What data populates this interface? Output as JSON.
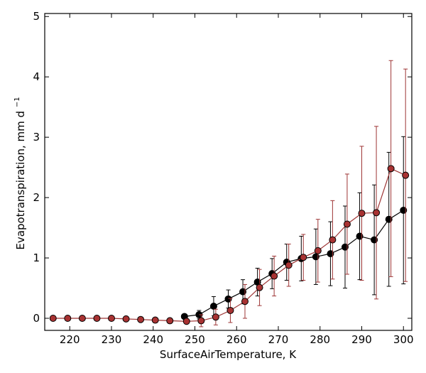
{
  "chart_data": {
    "type": "line",
    "xlabel": "SurfaceAirTemperature,  K",
    "ylabel": "Evapotranspiration,  mm d",
    "ylabel_sup": "−1",
    "xlim": [
      214,
      302
    ],
    "ylim": [
      -0.2,
      5.05
    ],
    "xticks": [
      220,
      230,
      240,
      250,
      260,
      270,
      280,
      290,
      300
    ],
    "yticks": [
      0,
      1,
      2,
      3,
      4,
      5
    ],
    "grid": false,
    "legend": "none",
    "series": [
      {
        "color": "#000000",
        "marker_fill": "#000000",
        "points": [
          {
            "x": 247.5,
            "y": 0.03,
            "err": 0.03
          },
          {
            "x": 251.0,
            "y": 0.06,
            "err": 0.07
          },
          {
            "x": 254.5,
            "y": 0.2,
            "err": 0.16
          },
          {
            "x": 258.0,
            "y": 0.32,
            "err": 0.15
          },
          {
            "x": 261.5,
            "y": 0.44,
            "err": 0.2
          },
          {
            "x": 265.0,
            "y": 0.6,
            "err": 0.23
          },
          {
            "x": 268.5,
            "y": 0.74,
            "err": 0.25
          },
          {
            "x": 272.0,
            "y": 0.93,
            "err": 0.3
          },
          {
            "x": 275.5,
            "y": 0.99,
            "err": 0.37
          },
          {
            "x": 279.0,
            "y": 1.02,
            "err": 0.46
          },
          {
            "x": 282.5,
            "y": 1.07,
            "err": 0.53
          },
          {
            "x": 286.0,
            "y": 1.18,
            "err": 0.68
          },
          {
            "x": 289.5,
            "y": 1.36,
            "err": 0.72
          },
          {
            "x": 293.0,
            "y": 1.3,
            "err": 0.91
          },
          {
            "x": 296.5,
            "y": 1.64,
            "err": 1.11
          },
          {
            "x": 300.0,
            "y": 1.79,
            "err": 1.22
          }
        ]
      },
      {
        "color": "#9e3535",
        "marker_fill": "#a83232",
        "points": [
          {
            "x": 216.0,
            "y": 0.0,
            "err": 0
          },
          {
            "x": 219.5,
            "y": 0.0,
            "err": 0
          },
          {
            "x": 223.0,
            "y": 0.0,
            "err": 0
          },
          {
            "x": 226.5,
            "y": 0.0,
            "err": 0
          },
          {
            "x": 230.0,
            "y": 0.0,
            "err": 0
          },
          {
            "x": 233.5,
            "y": -0.01,
            "err": 0
          },
          {
            "x": 237.0,
            "y": -0.02,
            "err": 0
          },
          {
            "x": 240.5,
            "y": -0.03,
            "err": 0
          },
          {
            "x": 244.0,
            "y": -0.04,
            "err": 0
          },
          {
            "x": 248.0,
            "y": -0.05,
            "err": 0.04
          },
          {
            "x": 251.5,
            "y": -0.04,
            "err": 0.1
          },
          {
            "x": 255.0,
            "y": 0.02,
            "err": 0.13
          },
          {
            "x": 258.5,
            "y": 0.13,
            "err": 0.2
          },
          {
            "x": 262.0,
            "y": 0.28,
            "err": 0.28
          },
          {
            "x": 265.5,
            "y": 0.51,
            "err": 0.3
          },
          {
            "x": 269.0,
            "y": 0.7,
            "err": 0.33
          },
          {
            "x": 272.5,
            "y": 0.88,
            "err": 0.35
          },
          {
            "x": 276.0,
            "y": 1.01,
            "err": 0.38
          },
          {
            "x": 279.5,
            "y": 1.12,
            "err": 0.52
          },
          {
            "x": 283.0,
            "y": 1.3,
            "err": 0.65
          },
          {
            "x": 286.5,
            "y": 1.56,
            "err": 0.83
          },
          {
            "x": 290.0,
            "y": 1.74,
            "err": 1.11
          },
          {
            "x": 293.5,
            "y": 1.75,
            "err": 1.43
          },
          {
            "x": 297.0,
            "y": 2.48,
            "err": 1.79
          },
          {
            "x": 300.5,
            "y": 2.37,
            "err": 1.76
          }
        ]
      }
    ]
  }
}
